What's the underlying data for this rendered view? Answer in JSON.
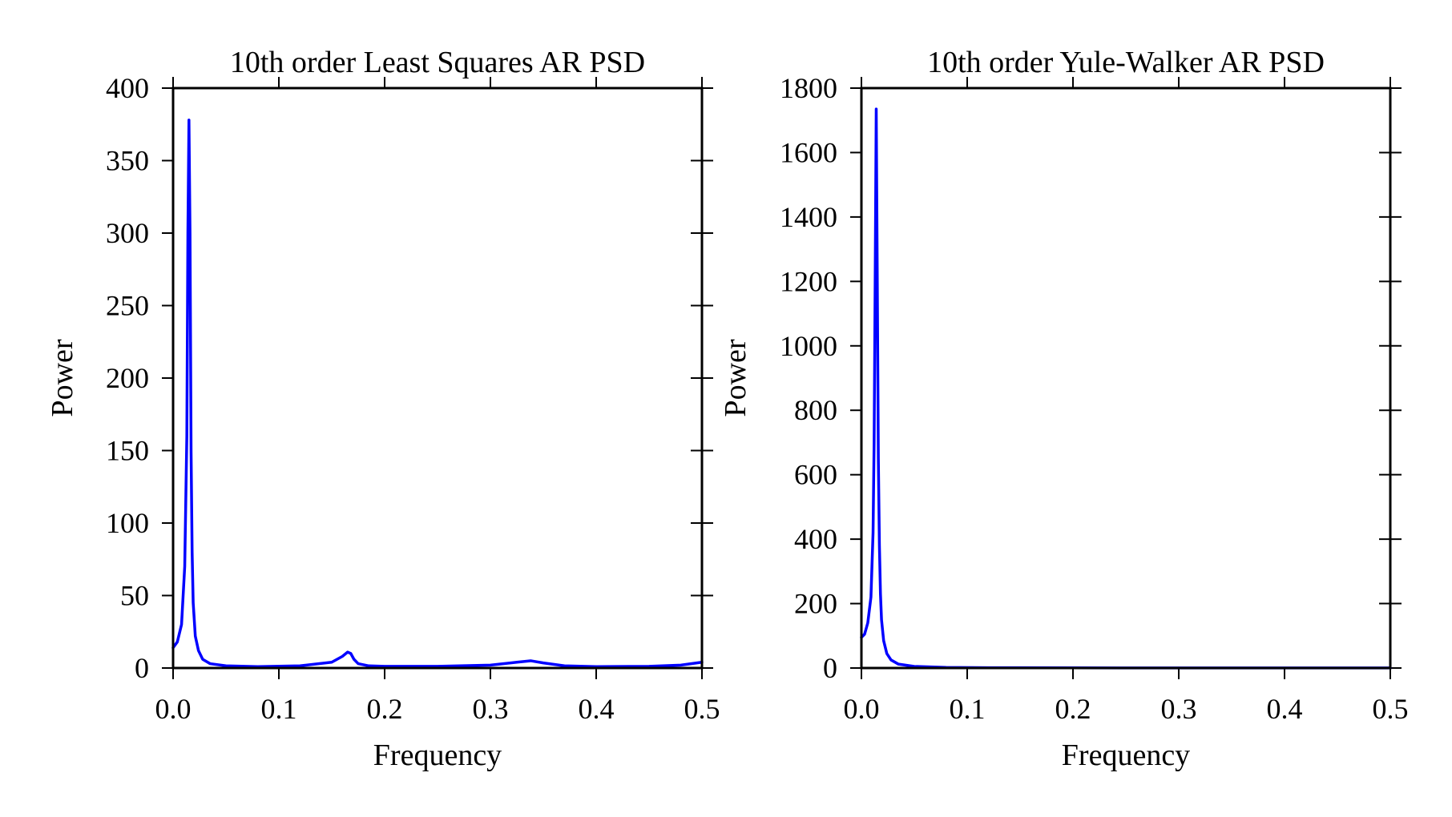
{
  "chart_data": [
    {
      "type": "line",
      "title": "10th order Least Squares AR PSD",
      "xlabel": "Frequency",
      "ylabel": "Power",
      "xlim": [
        0,
        0.5
      ],
      "ylim": [
        0,
        400
      ],
      "xticks": [
        "0.0",
        "0.1",
        "0.2",
        "0.3",
        "0.4",
        "0.5"
      ],
      "yticks": [
        "0",
        "50",
        "100",
        "150",
        "200",
        "250",
        "300",
        "350",
        "400"
      ],
      "grid": false,
      "color": "#0000ff",
      "series": [
        {
          "x": [
            0,
            0.004,
            0.008,
            0.011,
            0.013,
            0.014,
            0.015,
            0.016,
            0.017,
            0.018,
            0.019,
            0.021,
            0.024,
            0.028,
            0.035,
            0.05,
            0.08,
            0.12,
            0.15,
            0.16,
            0.165,
            0.168,
            0.171,
            0.175,
            0.185,
            0.2,
            0.25,
            0.3,
            0.325,
            0.338,
            0.35,
            0.37,
            0.4,
            0.45,
            0.48,
            0.5
          ],
          "y": [
            14,
            18,
            30,
            70,
            160,
            300,
            378,
            300,
            150,
            80,
            45,
            22,
            12,
            6,
            3,
            1.5,
            1,
            1.5,
            4,
            8,
            11,
            10,
            6,
            3,
            1.5,
            1.2,
            1.2,
            2,
            4,
            5,
            3.5,
            1.5,
            1,
            1.2,
            2,
            4
          ]
        }
      ]
    },
    {
      "type": "line",
      "title": "10th order Yule-Walker AR PSD",
      "xlabel": "Frequency",
      "ylabel": "Power",
      "xlim": [
        0,
        0.5
      ],
      "ylim": [
        0,
        1800
      ],
      "xticks": [
        "0.0",
        "0.1",
        "0.2",
        "0.3",
        "0.4",
        "0.5"
      ],
      "yticks": [
        "0",
        "200",
        "400",
        "600",
        "800",
        "1000",
        "1200",
        "1400",
        "1600",
        "1800"
      ],
      "grid": false,
      "color": "#0000ff",
      "series": [
        {
          "x": [
            0,
            0.003,
            0.006,
            0.009,
            0.011,
            0.012,
            0.013,
            0.014,
            0.015,
            0.016,
            0.017,
            0.018,
            0.019,
            0.021,
            0.024,
            0.028,
            0.035,
            0.05,
            0.08,
            0.12,
            0.2,
            0.3,
            0.4,
            0.5
          ],
          "y": [
            95,
            105,
            140,
            220,
            420,
            700,
            1200,
            1735,
            1200,
            650,
            380,
            230,
            150,
            85,
            45,
            25,
            12,
            5,
            2,
            1,
            0.5,
            0.3,
            0.2,
            0.2
          ]
        }
      ]
    }
  ]
}
